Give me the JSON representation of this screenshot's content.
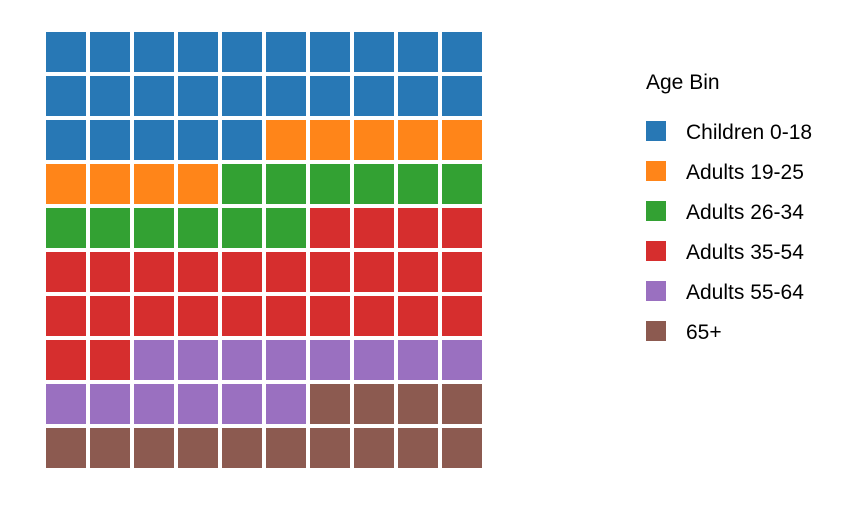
{
  "chart_data": {
    "type": "waffle",
    "grid": {
      "rows": 10,
      "columns": 10,
      "total_cells": 100
    },
    "fill_order": "row-major, top-left to bottom-right",
    "categories": [
      "Children 0-18",
      "Adults 19-25",
      "Adults 26-34",
      "Adults 35-54",
      "Adults 55-64",
      "65+"
    ],
    "values": [
      25,
      9,
      12,
      26,
      14,
      14
    ],
    "colors": [
      "#2878b5",
      "#ff8519",
      "#33a133",
      "#d62e2e",
      "#9a70c0",
      "#8c5a50"
    ],
    "legend": {
      "title": "Age Bin",
      "position": "right",
      "entries": [
        "Children 0-18",
        "Adults 19-25",
        "Adults 26-34",
        "Adults 35-54",
        "Adults 55-64",
        "65+"
      ]
    },
    "title": "",
    "xlabel": "",
    "ylabel": ""
  }
}
